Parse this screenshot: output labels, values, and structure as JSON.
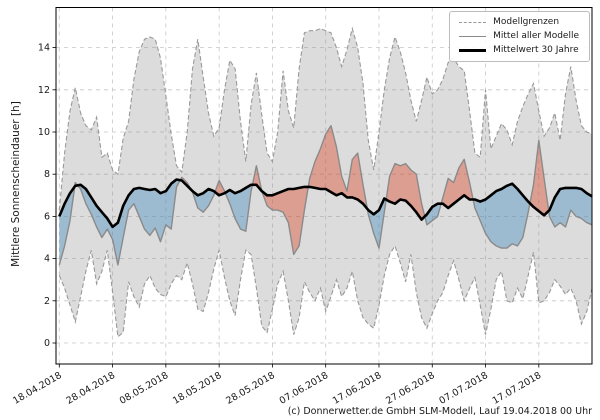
{
  "caption": "(c) Donnerwetter.de GmbH SLM-Modell, Lauf 19.04.2018 00 Uhr",
  "chart_data": {
    "type": "area",
    "title": "",
    "xlabel": "",
    "ylabel": "Mittlere Sonnenscheindauer [h]",
    "ylim": [
      -1,
      15.9
    ],
    "yticks": [
      0,
      2,
      4,
      6,
      8,
      10,
      12,
      14
    ],
    "x_tick_labels": [
      "18.04.2018",
      "28.04.2018",
      "08.05.2018",
      "18.05.2018",
      "28.05.2018",
      "07.06.2018",
      "17.06.2018",
      "27.06.2018",
      "07.07.2018",
      "17.07.2018"
    ],
    "x_tick_days": [
      0,
      10,
      20,
      30,
      40,
      50,
      60,
      70,
      80,
      90
    ],
    "x_total_days": 100,
    "grid": true,
    "legend_position": "upper right",
    "legend_items": [
      "Modellgrenzen",
      "Mittel aller Modelle",
      "Mittelwert 30 Jahre"
    ],
    "colors": {
      "band_fill": "rgba(130,130,130,0.28)",
      "band_edge": "#999999",
      "mean_line": "#8a8a8a",
      "clim_line": "#000000",
      "above_fill": "rgba(223,65,35,0.40)",
      "below_fill": "rgba(70,140,190,0.42)",
      "grid": "#c6c6c6",
      "spine": "#000000"
    },
    "series": [
      {
        "name": "Modellgrenzen (obere Grenze)",
        "role": "upper_bound",
        "style": "dashed-gray",
        "values": [
          6.3,
          9.0,
          11.0,
          12.1,
          10.9,
          10.3,
          10.1,
          10.7,
          8.8,
          9.0,
          8.2,
          8.0,
          9.7,
          10.5,
          12.5,
          13.8,
          14.4,
          14.5,
          14.4,
          13.5,
          11.7,
          9.9,
          8.4,
          8.1,
          10.0,
          13.0,
          14.4,
          12.6,
          10.9,
          9.8,
          10.2,
          12.0,
          13.4,
          13.0,
          10.5,
          8.6,
          11.3,
          12.8,
          10.8,
          9.0,
          8.6,
          10.0,
          12.9,
          11.0,
          10.2,
          13.0,
          14.7,
          14.8,
          14.8,
          14.9,
          14.8,
          14.7,
          14.0,
          13.1,
          13.9,
          14.9,
          14.0,
          12.3,
          9.6,
          8.2,
          10.0,
          12.0,
          13.5,
          14.5,
          13.8,
          12.8,
          11.5,
          10.5,
          11.5,
          12.6,
          11.8,
          12.0,
          12.5,
          13.3,
          13.5,
          13.1,
          12.9,
          11.0,
          9.0,
          8.8,
          12.0,
          9.2,
          9.8,
          10.4,
          10.1,
          9.4,
          10.5,
          11.2,
          11.8,
          12.3,
          11.0,
          9.8,
          10.2,
          10.9,
          9.6,
          11.8,
          13.1,
          11.5,
          10.3,
          10.0,
          9.9
        ]
      },
      {
        "name": "Modellgrenzen (untere Grenze)",
        "role": "lower_bound",
        "style": "dashed-gray",
        "values": [
          3.2,
          2.6,
          1.8,
          1.0,
          2.2,
          3.4,
          4.4,
          2.8,
          3.4,
          4.4,
          2.4,
          0.3,
          0.5,
          2.9,
          2.2,
          1.7,
          2.8,
          3.2,
          2.6,
          2.3,
          2.2,
          2.8,
          3.2,
          3.0,
          3.8,
          2.8,
          1.6,
          1.5,
          2.4,
          3.5,
          4.4,
          3.1,
          2.0,
          1.3,
          3.0,
          4.4,
          4.2,
          2.6,
          0.8,
          0.5,
          1.6,
          2.8,
          3.4,
          2.0,
          0.4,
          1.2,
          2.9,
          2.4,
          2.0,
          2.6,
          1.5,
          2.2,
          3.0,
          2.2,
          2.6,
          3.4,
          2.0,
          1.2,
          0.9,
          0.7,
          1.8,
          3.2,
          4.2,
          4.6,
          3.8,
          2.9,
          4.2,
          2.4,
          1.2,
          0.7,
          1.4,
          2.0,
          2.4,
          3.2,
          3.9,
          3.0,
          2.0,
          2.6,
          3.1,
          1.8,
          0.4,
          1.6,
          3.0,
          3.4,
          2.0,
          1.9,
          2.6,
          2.1,
          3.2,
          4.3,
          1.9,
          2.0,
          2.4,
          3.0,
          2.7,
          2.3,
          2.6,
          2.0,
          0.9,
          1.5,
          2.6
        ]
      },
      {
        "name": "Mittel aller Modelle",
        "role": "model_mean",
        "style": "solid-gray",
        "values": [
          3.7,
          4.6,
          5.8,
          7.6,
          7.3,
          6.6,
          6.1,
          5.5,
          5.0,
          5.4,
          4.9,
          3.7,
          5.0,
          6.3,
          6.6,
          6.0,
          5.4,
          5.1,
          5.45,
          4.8,
          5.6,
          5.4,
          7.4,
          7.85,
          7.6,
          7.15,
          6.4,
          6.2,
          6.5,
          7.0,
          7.7,
          7.2,
          6.6,
          5.9,
          5.4,
          5.3,
          7.2,
          8.4,
          7.2,
          6.5,
          6.3,
          6.3,
          6.2,
          5.7,
          4.2,
          4.6,
          6.3,
          7.8,
          8.6,
          9.2,
          9.9,
          10.3,
          9.3,
          7.9,
          7.2,
          8.7,
          9.0,
          7.5,
          6.1,
          5.2,
          4.5,
          6.2,
          7.9,
          8.5,
          8.4,
          8.5,
          8.2,
          8.0,
          6.6,
          5.6,
          5.8,
          6.0,
          6.9,
          7.8,
          7.6,
          8.3,
          8.7,
          7.6,
          6.4,
          5.8,
          5.2,
          4.8,
          4.6,
          4.5,
          4.5,
          4.7,
          4.6,
          5.0,
          6.2,
          7.5,
          9.6,
          7.8,
          6.0,
          5.5,
          5.7,
          5.5,
          6.3,
          6.0,
          5.9,
          5.7,
          5.6
        ]
      },
      {
        "name": "Mittelwert 30 Jahre",
        "role": "climatology_30yr",
        "style": "solid-black-thick",
        "values": [
          6.0,
          6.6,
          7.1,
          7.45,
          7.5,
          7.3,
          6.9,
          6.5,
          6.2,
          5.9,
          5.5,
          5.7,
          6.5,
          7.0,
          7.3,
          7.35,
          7.3,
          7.25,
          7.3,
          7.1,
          7.2,
          7.55,
          7.75,
          7.7,
          7.45,
          7.2,
          7.0,
          7.1,
          7.3,
          7.2,
          7.0,
          7.1,
          7.25,
          7.1,
          7.2,
          7.35,
          7.5,
          7.5,
          7.2,
          7.0,
          7.0,
          7.1,
          7.2,
          7.3,
          7.3,
          7.35,
          7.4,
          7.4,
          7.35,
          7.3,
          7.3,
          7.15,
          7.0,
          7.1,
          6.9,
          6.9,
          6.8,
          6.6,
          6.3,
          6.1,
          6.3,
          6.85,
          6.7,
          6.6,
          6.8,
          6.75,
          6.5,
          6.2,
          5.85,
          6.1,
          6.45,
          6.6,
          6.6,
          6.4,
          6.6,
          6.8,
          7.0,
          6.8,
          6.8,
          6.7,
          6.8,
          7.0,
          7.2,
          7.3,
          7.45,
          7.55,
          7.3,
          7.0,
          6.7,
          6.45,
          6.25,
          6.05,
          6.3,
          6.9,
          7.3,
          7.35,
          7.35,
          7.35,
          7.3,
          7.1,
          6.95
        ]
      }
    ]
  }
}
